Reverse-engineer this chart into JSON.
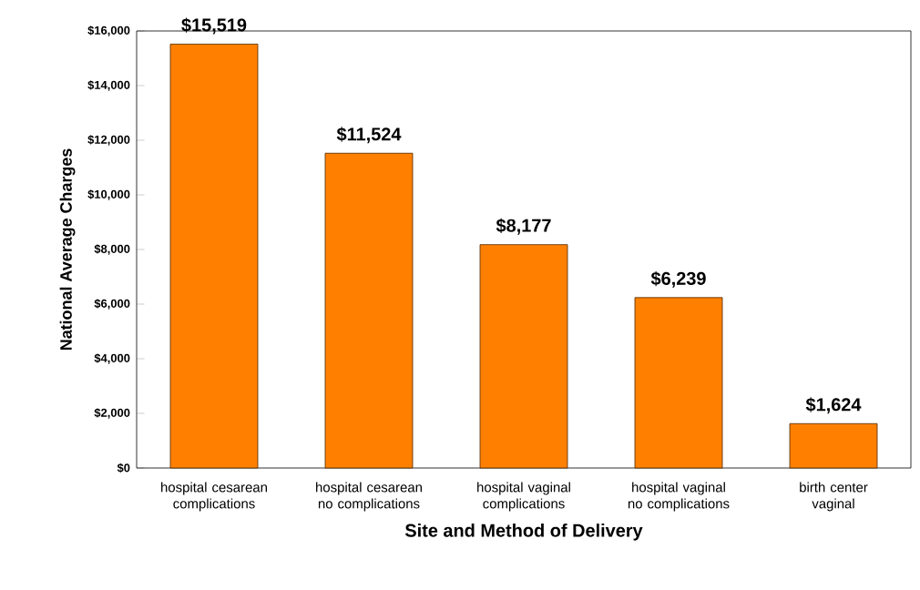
{
  "chart_data": {
    "type": "bar",
    "xlabel": "Site and Method of Delivery",
    "ylabel": "National Average Charges",
    "categories": [
      "hospital cesarean complications",
      "hospital cesarean no complications",
      "hospital vaginal complications",
      "hospital vaginal no complications",
      "birth center vaginal"
    ],
    "values": [
      15519,
      11524,
      8177,
      6239,
      1624
    ],
    "value_labels": [
      "$15,519",
      "$11,524",
      "$8,177",
      "$6,239",
      "$1,624"
    ],
    "color": "#ff8000",
    "ylim": [
      0,
      16000
    ],
    "yticks": [
      {
        "value": 0,
        "label": "$0"
      },
      {
        "value": 2000,
        "label": "$2,000"
      },
      {
        "value": 4000,
        "label": "$4,000"
      },
      {
        "value": 6000,
        "label": "$6,000"
      },
      {
        "value": 8000,
        "label": "$8,000"
      },
      {
        "value": 10000,
        "label": "$10,000"
      },
      {
        "value": 12000,
        "label": "$12,000"
      },
      {
        "value": 14000,
        "label": "$14,000"
      },
      {
        "value": 16000,
        "label": "$16,000"
      }
    ],
    "grid": false
  }
}
